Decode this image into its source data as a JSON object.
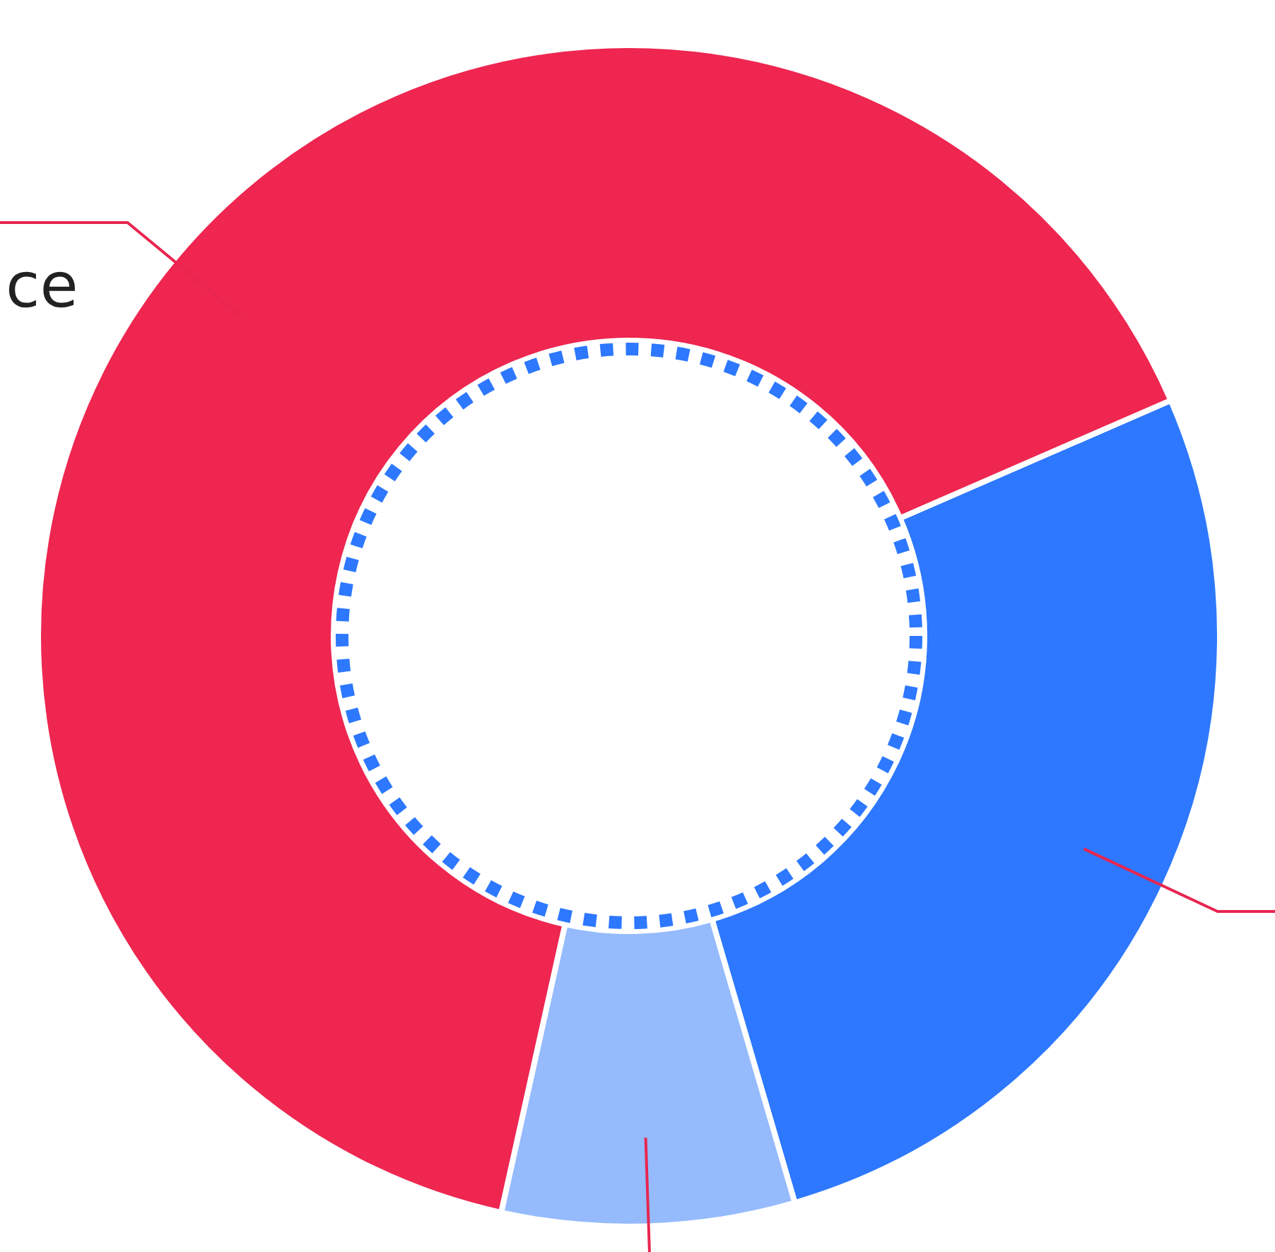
{
  "chart_data": {
    "type": "donut",
    "categories": [
      null,
      null,
      "ce"
    ],
    "values": [
      27,
      8,
      65
    ],
    "colors": [
      "#2d78fe",
      "#95bbfd",
      "#ee2650"
    ]
  }
}
